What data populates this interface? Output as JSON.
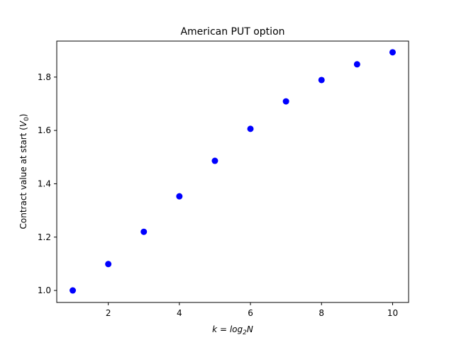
{
  "chart_data": {
    "type": "scatter",
    "title": "American PUT option",
    "xlabel": {
      "prefix": "k",
      "eq": " = ",
      "log": "log",
      "sub": "2",
      "var": "N"
    },
    "ylabel": {
      "text": "Contract value at start (",
      "var": "V",
      "sub": "0",
      "close": ")"
    },
    "xlim": [
      0.55,
      10.45
    ],
    "ylim": [
      0.955,
      1.935
    ],
    "xticks": [
      2,
      4,
      6,
      8,
      10
    ],
    "xtick_labels": [
      "2",
      "4",
      "6",
      "8",
      "10"
    ],
    "yticks": [
      1.0,
      1.2,
      1.4,
      1.6,
      1.8
    ],
    "ytick_labels": [
      "1.0",
      "1.2",
      "1.4",
      "1.6",
      "1.8"
    ],
    "marker_color": "#0000ff",
    "grid": false,
    "legend": "none",
    "series": [
      {
        "x": [
          1,
          2,
          3,
          4,
          5,
          6,
          7,
          8,
          9,
          10
        ],
        "y": [
          1.0,
          1.099,
          1.22,
          1.353,
          1.486,
          1.606,
          1.709,
          1.789,
          1.848,
          1.893
        ]
      }
    ]
  }
}
